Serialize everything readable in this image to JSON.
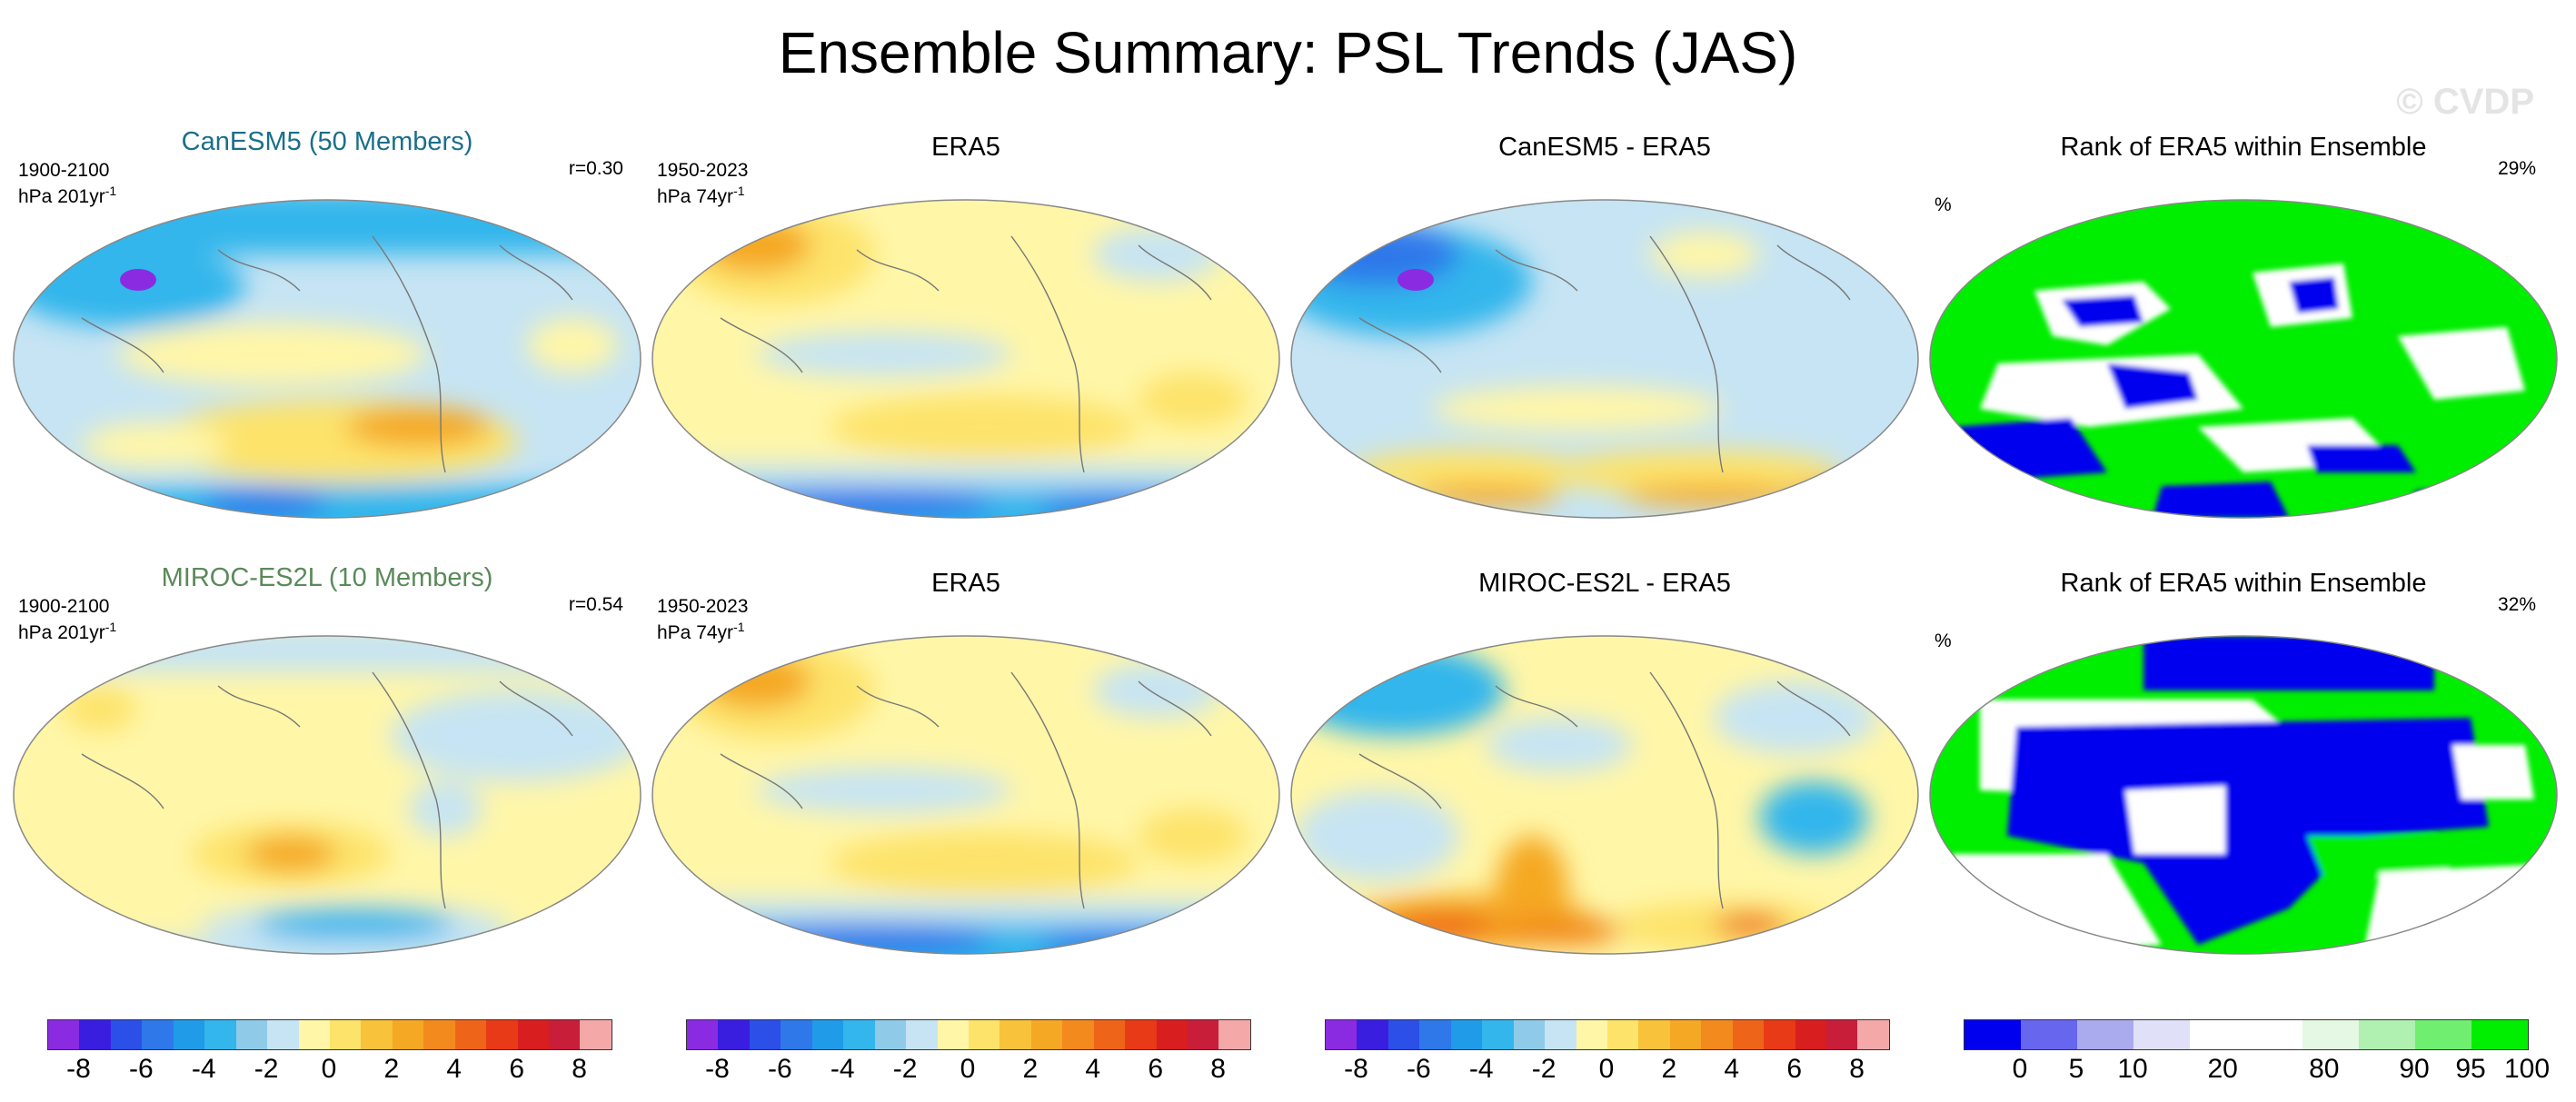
{
  "title": "Ensemble Summary: PSL Trends (JAS)",
  "watermark": "© CVDP",
  "rows": [
    {
      "model": {
        "title": "CanESM5 (50 Members)",
        "title_color": "#1a6f8a",
        "period": "1900-2100",
        "units": "hPa 201yr",
        "units_exp": "-1",
        "corr": "r=0.30"
      },
      "obs": {
        "title": "ERA5",
        "period": "1950-2023",
        "units": "hPa 74yr",
        "units_exp": "-1"
      },
      "diff": {
        "title": "CanESM5 - ERA5"
      },
      "rank": {
        "title": "Rank of ERA5 within Ensemble",
        "percent": "29%",
        "unit": "%"
      }
    },
    {
      "model": {
        "title": "MIROC-ES2L (10 Members)",
        "title_color": "#5a8a5a",
        "period": "1900-2100",
        "units": "hPa 201yr",
        "units_exp": "-1",
        "corr": "r=0.54"
      },
      "obs": {
        "title": "ERA5",
        "period": "1950-2023",
        "units": "hPa 74yr",
        "units_exp": "-1"
      },
      "diff": {
        "title": "MIROC-ES2L - ERA5"
      },
      "rank": {
        "title": "Rank of ERA5 within Ensemble",
        "percent": "32%",
        "unit": "%"
      }
    }
  ],
  "colorbar_trend": {
    "colors": [
      "#8a2be2",
      "#3a1ee0",
      "#2c4fe8",
      "#2e78ea",
      "#1f9be8",
      "#33b6ec",
      "#8fcbe9",
      "#c6e4f3",
      "#fff6a8",
      "#fde36a",
      "#f8c23a",
      "#f5a823",
      "#f28a1e",
      "#ee651a",
      "#e83a17",
      "#d81e1e",
      "#c81e3a",
      "#f4a8a8"
    ],
    "ticks": [
      "-8",
      "-6",
      "-4",
      "-2",
      "0",
      "2",
      "4",
      "6",
      "8"
    ]
  },
  "colorbar_rank": {
    "colors": [
      "#0000ee",
      "#6666ee",
      "#aaaaee",
      "#e0e0f8",
      "#ffffff",
      "#ffffff",
      "#e4f8e4",
      "#b0f0b0",
      "#70ee70",
      "#00ee00"
    ],
    "ticks": [
      "0",
      "5",
      "10",
      "20",
      "80",
      "90",
      "95",
      "100"
    ]
  },
  "map_colors": {
    "deep_blue": "#2c4fe8",
    "mid_blue": "#33b6ec",
    "light_blue": "#c6e4f3",
    "yellow": "#fff6a8",
    "gold": "#fde36a",
    "orange": "#f5a823",
    "red_orange": "#ee651a",
    "purple": "#8a2be2",
    "rank_blue": "#0000ee",
    "rank_green": "#00ee00"
  }
}
